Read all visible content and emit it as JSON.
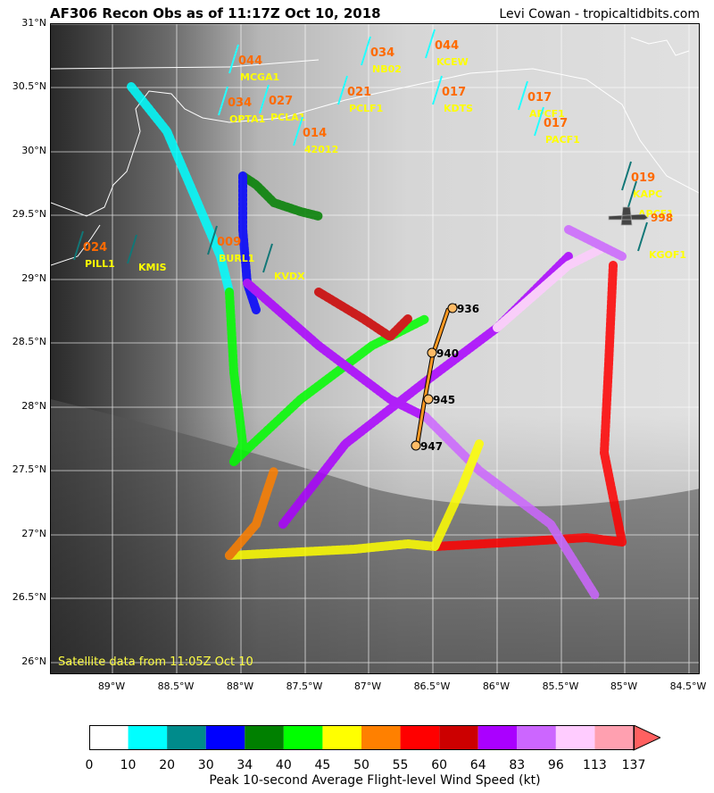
{
  "header": {
    "title": "AF306 Recon Obs as of 11:17Z Oct 10, 2018",
    "credit": "Levi Cowan - tropicaltidbits.com"
  },
  "satellite_note": "Satellite data from 11:05Z Oct 10",
  "axes": {
    "lon_labels": [
      "89°W",
      "88.5°W",
      "88°W",
      "87.5°W",
      "87°W",
      "86.5°W",
      "86°W",
      "85.5°W",
      "85°W",
      "84.5°W"
    ],
    "lat_labels": [
      "31°N",
      "30.5°N",
      "30°N",
      "29.5°N",
      "29°N",
      "28.5°N",
      "28°N",
      "27.5°N",
      "27°N",
      "26.5°N",
      "26°N"
    ]
  },
  "pressure_labels": [
    "936",
    "940",
    "945",
    "947",
    "998"
  ],
  "stations": [
    {
      "id": "MCGA1",
      "value": "044"
    },
    {
      "id": "OPTA1",
      "value": "034"
    },
    {
      "id": "PCLA1",
      "value": "027"
    },
    {
      "id": "42012",
      "value": "014"
    },
    {
      "id": "PCLF1",
      "value": "021"
    },
    {
      "id": "NB02",
      "value": "034"
    },
    {
      "id": "KCEW",
      "value": "044"
    },
    {
      "id": "KDTS",
      "value": "017"
    },
    {
      "id": "APCF1",
      "value": "017"
    },
    {
      "id": "PACF1",
      "value": "017"
    },
    {
      "id": "KMIS",
      "value": ""
    },
    {
      "id": "PILL1",
      "value": "024"
    },
    {
      "id": "BURL1",
      "value": "009"
    },
    {
      "id": "KVDX",
      "value": ""
    },
    {
      "id": "KAPC",
      "value": "019"
    },
    {
      "id": "APCF1",
      "value": ""
    },
    {
      "id": "KGOF1",
      "value": ""
    }
  ],
  "colorbar": {
    "caption": "Peak 10-second Average Flight-level Wind Speed (kt)",
    "ticks": [
      "0",
      "10",
      "20",
      "30",
      "34",
      "40",
      "45",
      "50",
      "55",
      "60",
      "64",
      "83",
      "96",
      "113",
      "137"
    ],
    "colors": [
      "#ffffff",
      "#00ffff",
      "#008b8b",
      "#0000ff",
      "#008000",
      "#00ff00",
      "#ffff00",
      "#ff8000",
      "#ff0000",
      "#cc0000",
      "#aa00ff",
      "#cc66ff",
      "#ffccff",
      "#ffa0b0",
      "#ff6060"
    ]
  },
  "colors": {
    "station_value": "#ff6a00",
    "station_id": "#ffff00",
    "track_line": "#ff9922"
  }
}
